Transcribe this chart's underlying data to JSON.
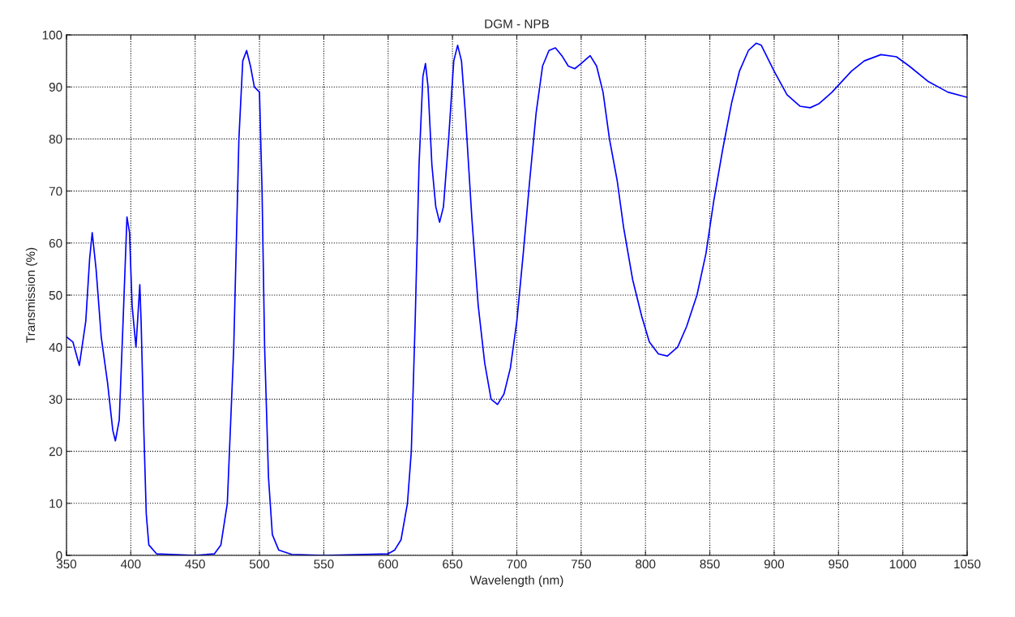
{
  "chart_data": {
    "type": "line",
    "title": "DGM - NPB",
    "xlabel": "Wavelength (nm)",
    "ylabel": "Transmission (%)",
    "xlim": [
      350,
      1050
    ],
    "xticks": [
      350,
      400,
      450,
      500,
      550,
      600,
      650,
      700,
      750,
      800,
      850,
      900,
      950,
      1000,
      1050
    ],
    "ylim": [
      0,
      100
    ],
    "yticks": [
      0,
      10,
      20,
      30,
      40,
      50,
      60,
      70,
      80,
      90,
      100
    ],
    "grid": true,
    "line_style": "solid",
    "series": [
      {
        "color": "#0000ff",
        "x": [
          350,
          355,
          360,
          365,
          368,
          370,
          373,
          377,
          382,
          386,
          388,
          391,
          394,
          397,
          399,
          401,
          404,
          406,
          407,
          408,
          410,
          412,
          414,
          420,
          450,
          465,
          470,
          475,
          480,
          484,
          487,
          490,
          493,
          496,
          500,
          502,
          504,
          507,
          510,
          515,
          525,
          550,
          600,
          605,
          610,
          615,
          618,
          621,
          624,
          627,
          629,
          631,
          634,
          637,
          640,
          643,
          647,
          651,
          654,
          657,
          660,
          665,
          670,
          675,
          680,
          685,
          690,
          695,
          700,
          705,
          710,
          715,
          720,
          725,
          730,
          735,
          740,
          745,
          750,
          757,
          762,
          767,
          772,
          778,
          783,
          790,
          797,
          803,
          810,
          817,
          825,
          832,
          840,
          847,
          853,
          860,
          867,
          873,
          880,
          886,
          890,
          895,
          900,
          910,
          920,
          928,
          935,
          945,
          960,
          970,
          983,
          995,
          1005,
          1020,
          1035,
          1050
        ],
        "values": [
          42,
          41,
          36.5,
          45,
          57,
          62,
          55,
          42,
          33,
          24,
          22,
          26,
          45,
          65,
          62,
          48,
          40,
          48,
          52,
          45,
          25,
          8,
          2,
          0.3,
          0,
          0.3,
          2,
          10,
          40,
          80,
          95,
          97,
          94,
          90,
          89,
          70,
          40,
          15,
          4,
          1,
          0.2,
          0,
          0.3,
          1,
          3,
          10,
          20,
          45,
          75,
          92,
          94.5,
          90,
          75,
          67,
          64,
          67,
          80,
          95,
          98,
          95,
          85,
          65,
          48,
          37,
          30,
          29,
          31,
          36,
          45,
          58,
          72,
          85,
          94,
          97,
          97.5,
          96,
          94,
          93.5,
          94.5,
          96,
          94,
          89,
          80,
          72,
          63,
          53,
          46,
          41,
          38.7,
          38.3,
          40,
          44,
          50,
          58,
          68,
          78,
          87,
          93,
          97,
          98.4,
          98,
          95.5,
          93,
          88.5,
          86.3,
          86,
          86.8,
          89,
          93,
          95,
          96.2,
          95.8,
          94,
          91,
          89,
          88
        ]
      }
    ]
  }
}
